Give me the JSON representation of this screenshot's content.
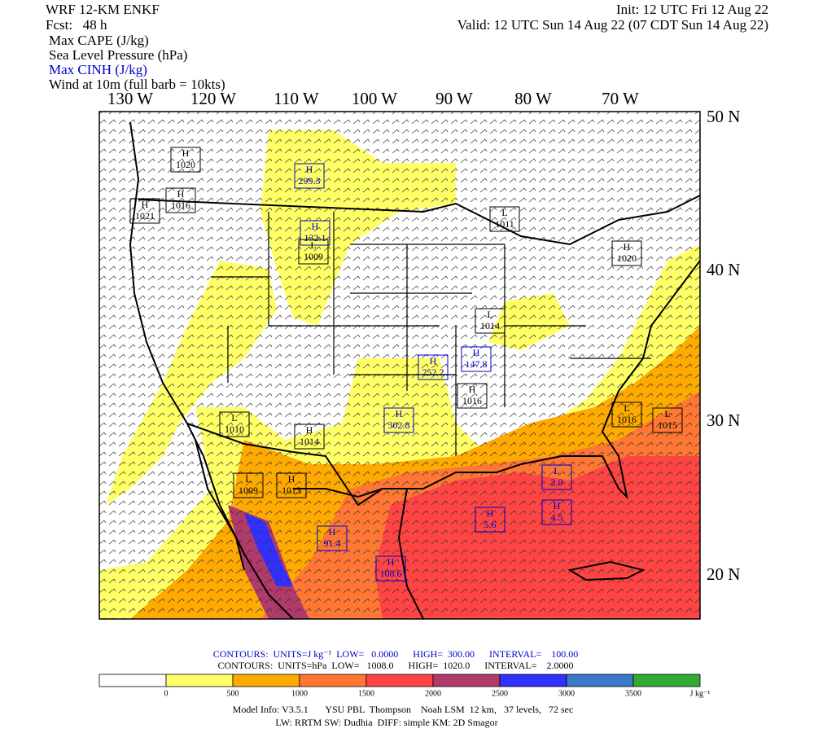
{
  "header": {
    "title": "WRF 12-KM ENKF",
    "forecast": "Fcst:   48 h",
    "init": "Init: 12 UTC Fri 12 Aug 22",
    "valid": "Valid: 12 UTC Sun 14 Aug 22 (07 CDT Sun 14 Aug 22)",
    "fields": [
      {
        "text": "Max CAPE (J/kg)",
        "color": "#000000"
      },
      {
        "text": "Sea Level Pressure (hPa)",
        "color": "#000000"
      },
      {
        "text": "Max CINH (J/kg)",
        "color": "#0000cc"
      },
      {
        "text": "Wind at 10m (full barb = 10kts)",
        "color": "#000000"
      }
    ]
  },
  "map": {
    "lon_labels": [
      "130 W",
      "120 W",
      "110 W",
      "100 W",
      "90 W",
      "80 W",
      "70 W"
    ],
    "lat_labels": [
      "50 N",
      "40 N",
      "30 N",
      "20 N"
    ],
    "centers": [
      {
        "letter": "H",
        "value": "1020",
        "color": "black"
      },
      {
        "letter": "H",
        "value": "1016",
        "color": "black"
      },
      {
        "letter": "H",
        "value": "1021",
        "color": "black"
      },
      {
        "letter": "H",
        "value": "299.3",
        "color": "blue"
      },
      {
        "letter": "H",
        "value": "132.1",
        "color": "blue"
      },
      {
        "letter": "L",
        "value": "1009",
        "color": "black"
      },
      {
        "letter": "L",
        "value": "1011",
        "color": "black"
      },
      {
        "letter": "H",
        "value": "1020",
        "color": "black"
      },
      {
        "letter": "L",
        "value": "1014",
        "color": "black"
      },
      {
        "letter": "H",
        "value": "252.2",
        "color": "blue"
      },
      {
        "letter": "H",
        "value": "147.8",
        "color": "blue"
      },
      {
        "letter": "H",
        "value": "1016",
        "color": "black"
      },
      {
        "letter": "H",
        "value": "1014",
        "color": "black"
      },
      {
        "letter": "H",
        "value": "302.8",
        "color": "blue"
      },
      {
        "letter": "H",
        "value": "1013",
        "color": "black"
      },
      {
        "letter": "L",
        "value": "1010",
        "color": "black"
      },
      {
        "letter": "L",
        "value": "1009",
        "color": "black"
      },
      {
        "letter": "H",
        "value": "91.4",
        "color": "blue"
      },
      {
        "letter": "H",
        "value": "108.6",
        "color": "blue"
      },
      {
        "letter": "H",
        "value": "5.6",
        "color": "blue"
      },
      {
        "letter": "H",
        "value": "4.5",
        "color": "blue"
      },
      {
        "letter": "L",
        "value": "2.0",
        "color": "blue"
      },
      {
        "letter": "L",
        "value": "1015",
        "color": "black"
      },
      {
        "letter": "L",
        "value": "1016",
        "color": "black"
      }
    ]
  },
  "legend": {
    "cape_line": "CONTOURS:  UNITS=J kg⁻¹  LOW=   0.0000      HIGH=  300.00      INTERVAL=    100.00",
    "slp_line": "CONTOURS:  UNITS=hPa  LOW=   1008.0      HIGH=  1020.0      INTERVAL=    2.0000",
    "colorbar": {
      "colors": [
        "#ffffff",
        "#ffff66",
        "#ffaa00",
        "#ff7733",
        "#ff4444",
        "#b03a6a",
        "#3030ff",
        "#3a78c8",
        "#33aa33"
      ],
      "labels": [
        "0",
        "500",
        "1000",
        "1500",
        "2000",
        "2500",
        "3000",
        "3500"
      ],
      "unit": "J kg⁻¹"
    }
  },
  "footer": {
    "line1": "Model Info: V3.5.1       YSU PBL  Thompson    Noah LSM  12 km,   37 levels,   72 sec",
    "line2": "LW: RRTM SW: Dudhia  DIFF: simple KM: 2D Smagor"
  }
}
